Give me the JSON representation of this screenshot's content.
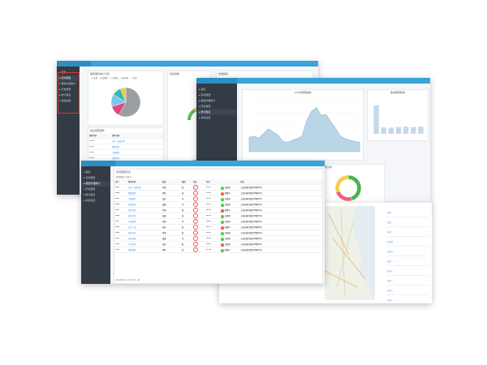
{
  "win_a": {
    "sidebar": [
      "首页",
      "实时报警",
      "报警处理统计",
      "历史报警",
      "统计报表",
      "系统设置"
    ],
    "card_left_title": "报警事件统计分析",
    "pie_legend": [
      "全部",
      "处理中",
      "已处理",
      "待处理",
      "其他"
    ],
    "pie_slices": [
      {
        "name": "a",
        "value": 58,
        "color": "#9b9ea3"
      },
      {
        "name": "b",
        "value": 12,
        "color": "#e0457b"
      },
      {
        "name": "c",
        "value": 14,
        "color": "#7fc6e8"
      },
      {
        "name": "d",
        "value": 10,
        "color": "#3fb8a9"
      },
      {
        "name": "e",
        "value": 6,
        "color": "#f2c94c"
      }
    ],
    "gauge_title": "综合指数",
    "gauge_value": 0.48,
    "table_title": "最近报警事件",
    "table_headers": [
      "报警时间",
      "事件名称"
    ],
    "table_rows": [
      [
        "10:21",
        "仓库一温度异常"
      ],
      [
        "10:18",
        "烟感报警"
      ],
      [
        "09:52",
        "门磁报警"
      ],
      [
        "09:40",
        "电源异常"
      ],
      [
        "09:31",
        "仓库二湿度异常"
      ],
      [
        "09:12",
        "通讯中断"
      ]
    ],
    "legend_right": [
      "报警中",
      "处理中",
      "已处理"
    ],
    "third_card_title": "告警趋势"
  },
  "win_b": {
    "sidebar": [
      "首页",
      "实时报警",
      "报警处理统计",
      "历史报警",
      "统计报表",
      "系统设置"
    ],
    "area_title": "24小时报警趋势",
    "area_values": [
      28,
      30,
      26,
      35,
      44,
      38,
      32,
      20,
      18,
      22,
      25,
      30,
      60,
      78,
      85,
      70,
      72,
      58,
      45,
      30,
      25,
      22,
      20,
      18
    ],
    "bar_title": "各类报警数量",
    "bar_values": [
      80,
      18,
      17,
      19,
      20,
      19,
      20
    ],
    "donut1_title": "报警处理情况",
    "donut1": [
      {
        "value": 60,
        "color": "#f2637b"
      },
      {
        "value": 30,
        "color": "#46b44f"
      },
      {
        "value": 10,
        "color": "#f5d04c"
      }
    ],
    "donut2_title": "报警等级分布",
    "donut2": [
      {
        "value": 45,
        "color": "#46b44f"
      },
      {
        "value": 25,
        "color": "#f2637b"
      },
      {
        "value": 30,
        "color": "#f5d04c"
      }
    ]
  },
  "win_c": {
    "sidebar": [
      "首页",
      "实时报警",
      "报警处理统计",
      "历史报警",
      "统计报表",
      "系统设置"
    ],
    "card_title": "实时报警列表",
    "filter_text": "报警级别: 全部 ▼",
    "headers": [
      "序号",
      "报警名称",
      "类型",
      "级别",
      "状态",
      "时间",
      "",
      "位置"
    ],
    "rows": [
      [
        "1001",
        "仓库一温度异常",
        "环境",
        "高",
        "!",
        "10:21",
        "已处理",
        "上海市浦东新区XX路XX号"
      ],
      [
        "1002",
        "烟感报警",
        "消防",
        "高",
        "!",
        "10:18",
        "处理中",
        "上海市浦东新区XX路XX号"
      ],
      [
        "1003",
        "门磁报警",
        "安防",
        "中",
        "!",
        "10:05",
        "已处理",
        "上海市浦东新区XX路XX号"
      ],
      [
        "1004",
        "电源异常",
        "设备",
        "中",
        "!",
        "09:52",
        "已处理",
        "上海市浦东新区XX路XX号"
      ],
      [
        "1005",
        "湿度异常",
        "环境",
        "低",
        "!",
        "09:40",
        "处理中",
        "上海市浦东新区XX路XX号"
      ],
      [
        "1006",
        "通讯中断",
        "设备",
        "高",
        "!",
        "09:31",
        "已处理",
        "上海市浦东新区XX路XX号"
      ],
      [
        "1007",
        "水浸报警",
        "环境",
        "中",
        "!",
        "09:12",
        "已处理",
        "上海市浦东新区XX路XX号"
      ],
      [
        "1008",
        "红外入侵",
        "安防",
        "高",
        "!",
        "08:55",
        "处理中",
        "上海市浦东新区XX路XX号"
      ],
      [
        "1009",
        "温度异常",
        "环境",
        "低",
        "!",
        "08:40",
        "已处理",
        "上海市浦东新区XX路XX号"
      ],
      [
        "1010",
        "电流过载",
        "设备",
        "中",
        "!",
        "08:21",
        "已处理",
        "上海市浦东新区XX路XX号"
      ],
      [
        "1011",
        "门禁异常",
        "安防",
        "低",
        "!",
        "08:02",
        "已处理",
        "上海市浦东新区XX路XX号"
      ],
      [
        "1012",
        "烟感报警",
        "消防",
        "高",
        "!",
        "07:48",
        "处理中",
        "上海市浦东新区XX路XX号"
      ]
    ],
    "pager": "共 120 条 1 2 3 4 5 下一页",
    "right_list": [
      "仓库一",
      "仓库二",
      "仓库三",
      "仓库四",
      "仓库五",
      "仓库六",
      "仓库七",
      "仓库八",
      "仓库九",
      "仓库十"
    ]
  }
}
